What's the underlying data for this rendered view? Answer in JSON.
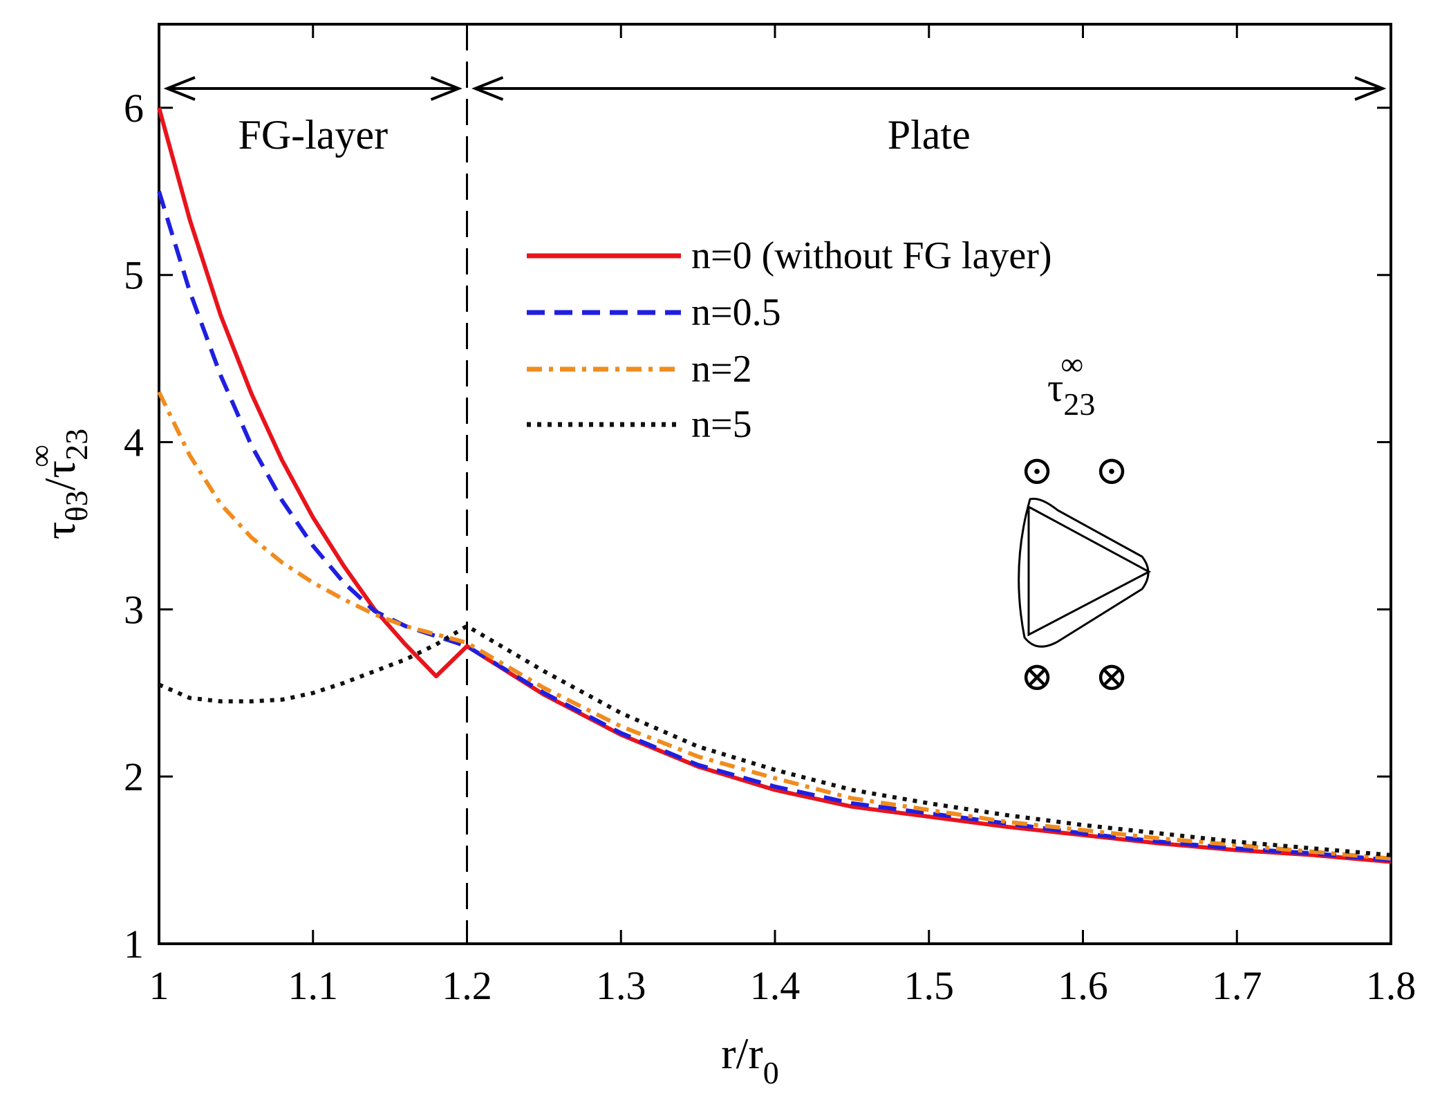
{
  "chart_data": {
    "type": "line",
    "title": "",
    "xlabel": "r/r",
    "xlabel_sub": "0",
    "ylabel_parts": {
      "num": "τ",
      "num_sub": "θ3",
      "slash": "/",
      "den": "τ",
      "den_sub": "23",
      "den_sup": "∞"
    },
    "xlim": [
      1.0,
      1.8
    ],
    "ylim": [
      1.0,
      6.5
    ],
    "x_ticks": [
      1.0,
      1.1,
      1.2,
      1.3,
      1.4,
      1.5,
      1.6,
      1.7,
      1.8
    ],
    "x_tick_labels": [
      "1",
      "1.1",
      "1.2",
      "1.3",
      "1.4",
      "1.5",
      "1.6",
      "1.7",
      "1.8"
    ],
    "y_ticks": [
      1,
      2,
      3,
      4,
      5,
      6
    ],
    "y_tick_labels": [
      "1",
      "2",
      "3",
      "4",
      "5",
      "6"
    ],
    "boundary_x": 1.2,
    "regions": [
      {
        "label": "FG-layer",
        "from": 1.0,
        "to": 1.2
      },
      {
        "label": "Plate",
        "from": 1.2,
        "to": 1.8
      }
    ],
    "series": [
      {
        "name": "n=0 (without FG layer)",
        "color": "#e8141c",
        "style": "solid",
        "x": [
          1.0,
          1.02,
          1.04,
          1.06,
          1.08,
          1.1,
          1.12,
          1.14,
          1.16,
          1.18,
          1.2,
          1.25,
          1.3,
          1.35,
          1.4,
          1.45,
          1.5,
          1.55,
          1.6,
          1.65,
          1.7,
          1.75,
          1.8
        ],
        "y": [
          6.0,
          5.33,
          4.76,
          4.29,
          3.89,
          3.55,
          3.26,
          3.0,
          2.79,
          2.6,
          2.78,
          2.49,
          2.25,
          2.06,
          1.92,
          1.82,
          1.76,
          1.7,
          1.65,
          1.6,
          1.56,
          1.53,
          1.49
        ]
      },
      {
        "name": "n=0.5",
        "color": "#1f1fe0",
        "style": "dashed",
        "x": [
          1.0,
          1.02,
          1.04,
          1.06,
          1.08,
          1.1,
          1.12,
          1.14,
          1.16,
          1.18,
          1.2,
          1.25,
          1.3,
          1.35,
          1.4,
          1.45,
          1.5,
          1.55,
          1.6,
          1.65,
          1.7,
          1.75,
          1.8
        ],
        "y": [
          5.5,
          4.9,
          4.4,
          3.98,
          3.65,
          3.38,
          3.16,
          2.99,
          2.9,
          2.84,
          2.78,
          2.5,
          2.26,
          2.07,
          1.94,
          1.84,
          1.78,
          1.72,
          1.66,
          1.61,
          1.57,
          1.54,
          1.5
        ]
      },
      {
        "name": "n=2",
        "color": "#f08c1e",
        "style": "dashdot",
        "x": [
          1.0,
          1.02,
          1.04,
          1.06,
          1.08,
          1.1,
          1.12,
          1.14,
          1.16,
          1.18,
          1.2,
          1.25,
          1.3,
          1.35,
          1.4,
          1.45,
          1.5,
          1.55,
          1.6,
          1.65,
          1.7,
          1.75,
          1.8
        ],
        "y": [
          4.3,
          3.92,
          3.63,
          3.43,
          3.28,
          3.16,
          3.06,
          2.97,
          2.9,
          2.85,
          2.8,
          2.53,
          2.3,
          2.12,
          1.99,
          1.87,
          1.8,
          1.73,
          1.68,
          1.63,
          1.59,
          1.55,
          1.51
        ]
      },
      {
        "name": "n=5",
        "color": "#111111",
        "style": "dotted",
        "x": [
          1.0,
          1.02,
          1.04,
          1.06,
          1.08,
          1.1,
          1.12,
          1.14,
          1.16,
          1.18,
          1.2,
          1.25,
          1.3,
          1.35,
          1.4,
          1.45,
          1.5,
          1.55,
          1.6,
          1.65,
          1.7,
          1.75,
          1.8
        ],
        "y": [
          2.55,
          2.47,
          2.45,
          2.45,
          2.46,
          2.5,
          2.56,
          2.63,
          2.7,
          2.79,
          2.9,
          2.63,
          2.38,
          2.18,
          2.04,
          1.92,
          1.84,
          1.77,
          1.71,
          1.66,
          1.61,
          1.57,
          1.53
        ]
      }
    ],
    "legend_position": "upper-center"
  },
  "inset": {
    "load_label": "τ",
    "load_sub": "23",
    "load_sup": "∞",
    "out_symbol": "⊙",
    "in_symbol": "⊗"
  }
}
